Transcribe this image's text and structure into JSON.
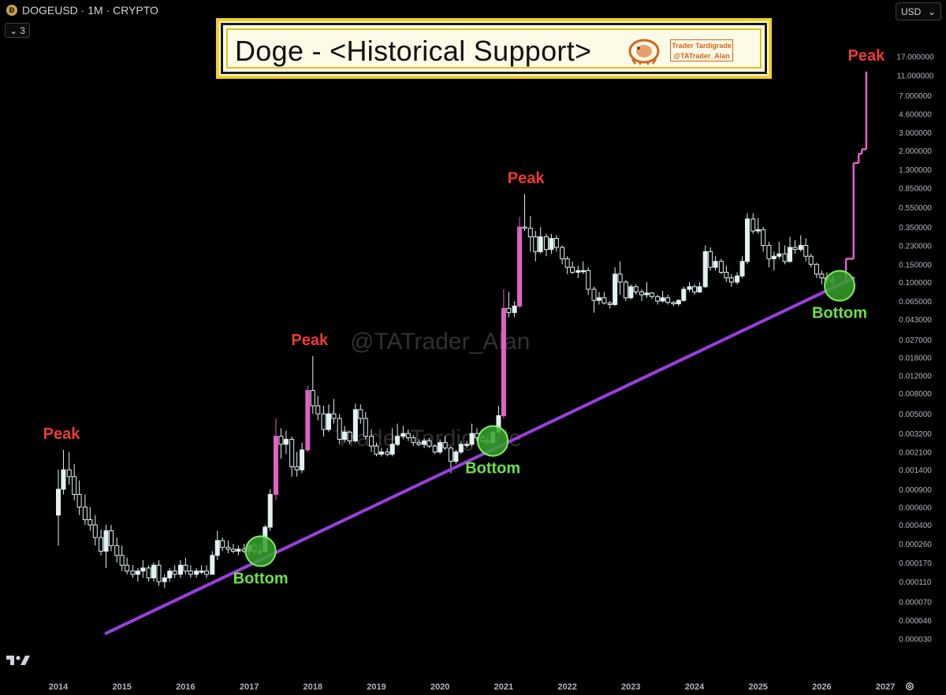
{
  "header": {
    "symbol_line": "DOGEUSD · 1M · CRYPTO",
    "coin_glyph": "Ð"
  },
  "indicator_pill": {
    "chevron": "⌄",
    "count": "3"
  },
  "currency_selector": {
    "value": "USD",
    "chevron": "⌄"
  },
  "title_box": {
    "title": "Doge - <Historical Support>",
    "badge_line1": "Trader Tardigrade",
    "badge_line2": "@TATrader_Alan"
  },
  "watermarks": {
    "handle": "@TATrader_Alan",
    "name": "Trader Tardigrade"
  },
  "colors": {
    "up_candle": "#e3f1f3",
    "peak_candle": "#e062c6",
    "support_line": "#9b3ee0",
    "peak_text": "#ee3b36",
    "bottom_text": "#6de04a",
    "bottom_circle": "#37a12e"
  },
  "chart_data": {
    "type": "candlestick",
    "symbol": "DOGEUSD",
    "interval": "1M",
    "y_scale": "log",
    "x_ticks": [
      "2014",
      "2015",
      "2016",
      "2017",
      "2018",
      "2019",
      "2020",
      "2021",
      "2022",
      "2023",
      "2024",
      "2025",
      "2026",
      "2027"
    ],
    "y_ticks": [
      "17.000000",
      "11.000000",
      "7.000000",
      "4.600000",
      "3.000000",
      "2.000000",
      "1.300000",
      "0.850000",
      "0.550000",
      "0.350000",
      "0.230000",
      "0.150000",
      "0.100000",
      "0.065000",
      "0.043000",
      "0.027000",
      "0.018000",
      "0.012000",
      "0.008000",
      "0.005000",
      "0.003200",
      "0.002100",
      "0.001400",
      "0.000900",
      "0.000600",
      "0.000400",
      "0.000260",
      "0.000170",
      "0.000110",
      "0.000070",
      "0.000046",
      "0.000030"
    ],
    "peaks": [
      {
        "label": "Peak",
        "year": 2014.05,
        "price": 0.0022
      },
      {
        "label": "Peak",
        "year": 2017.95,
        "price": 0.0186
      },
      {
        "label": "Peak",
        "year": 2021.35,
        "price": 0.74
      },
      {
        "label": "Peak",
        "year": 2026.7,
        "price": 12.0
      }
    ],
    "bottoms": [
      {
        "label": "Bottom",
        "year": 2017.18,
        "price": 0.00022
      },
      {
        "label": "Bottom",
        "year": 2020.83,
        "price": 0.0027
      },
      {
        "label": "Bottom",
        "year": 2026.28,
        "price": 0.092
      }
    ],
    "support_line": {
      "start": {
        "year": 2014.75,
        "price": 3.4e-05
      },
      "end": {
        "year": 2026.5,
        "price": 0.11
      }
    },
    "projection": [
      {
        "year": 2026.38,
        "price": 0.17
      },
      {
        "year": 2026.5,
        "price": 1.5
      },
      {
        "year": 2026.58,
        "price": 1.85
      },
      {
        "year": 2026.63,
        "price": 2.05
      },
      {
        "year": 2026.7,
        "price": 12.0
      }
    ],
    "candles": [
      [
        2014.0,
        0.0005,
        0.0014,
        0.00025,
        0.0009
      ],
      [
        2014.08,
        0.0009,
        0.0022,
        0.0008,
        0.0014
      ],
      [
        2014.17,
        0.0014,
        0.0021,
        0.001,
        0.0012
      ],
      [
        2014.25,
        0.0012,
        0.0016,
        0.0007,
        0.0008
      ],
      [
        2014.33,
        0.0008,
        0.0011,
        0.0005,
        0.0006
      ],
      [
        2014.42,
        0.0006,
        0.0008,
        0.0004,
        0.00045
      ],
      [
        2014.5,
        0.00045,
        0.0006,
        0.00035,
        0.0004
      ],
      [
        2014.58,
        0.0004,
        0.0005,
        0.00025,
        0.0003
      ],
      [
        2014.67,
        0.0003,
        0.00036,
        0.0002,
        0.00022
      ],
      [
        2014.75,
        0.00022,
        0.0004,
        0.00015,
        0.00035
      ],
      [
        2014.83,
        0.00035,
        0.0004,
        0.00022,
        0.00025
      ],
      [
        2014.92,
        0.00025,
        0.0003,
        0.00017,
        0.0002
      ],
      [
        2015.0,
        0.0002,
        0.00025,
        0.00014,
        0.00016
      ],
      [
        2015.08,
        0.00016,
        0.00019,
        0.00013,
        0.00014
      ],
      [
        2015.17,
        0.00014,
        0.00016,
        0.00012,
        0.00013
      ],
      [
        2015.25,
        0.00013,
        0.00015,
        0.00011,
        0.00014
      ],
      [
        2015.33,
        0.00014,
        0.00018,
        0.00012,
        0.00015
      ],
      [
        2015.42,
        0.00015,
        0.00016,
        0.00011,
        0.00012
      ],
      [
        2015.5,
        0.00012,
        0.00017,
        0.00011,
        0.00016
      ],
      [
        2015.58,
        0.00016,
        0.00018,
        0.0001,
        0.00011
      ],
      [
        2015.67,
        0.00011,
        0.00013,
        9.5e-05,
        0.00012
      ],
      [
        2015.75,
        0.00012,
        0.00015,
        0.00011,
        0.00014
      ],
      [
        2015.83,
        0.00014,
        0.00016,
        0.00012,
        0.00013
      ],
      [
        2015.92,
        0.00013,
        0.00018,
        0.00012,
        0.00016
      ],
      [
        2016.0,
        0.00016,
        0.00019,
        0.00013,
        0.00014
      ],
      [
        2016.08,
        0.00014,
        0.00016,
        0.00012,
        0.00013
      ],
      [
        2016.17,
        0.00013,
        0.00015,
        0.00012,
        0.00014
      ],
      [
        2016.25,
        0.00014,
        0.00016,
        0.00013,
        0.00014
      ],
      [
        2016.33,
        0.00014,
        0.00016,
        0.00012,
        0.00013
      ],
      [
        2016.42,
        0.00013,
        0.00022,
        0.00013,
        0.0002
      ],
      [
        2016.5,
        0.0002,
        0.00035,
        0.00018,
        0.00028
      ],
      [
        2016.58,
        0.00028,
        0.0003,
        0.00022,
        0.00024
      ],
      [
        2016.67,
        0.00024,
        0.00028,
        0.00021,
        0.00023
      ],
      [
        2016.75,
        0.00023,
        0.00026,
        0.00021,
        0.00022
      ],
      [
        2016.83,
        0.00022,
        0.00025,
        0.0002,
        0.00023
      ],
      [
        2016.92,
        0.00023,
        0.00026,
        0.00021,
        0.00022
      ],
      [
        2017.0,
        0.00022,
        0.00028,
        0.0002,
        0.00025
      ],
      [
        2017.08,
        0.00025,
        0.00027,
        0.0002,
        0.00022
      ],
      [
        2017.17,
        0.00022,
        0.00026,
        0.0002,
        0.00022
      ],
      [
        2017.25,
        0.00022,
        0.0004,
        0.00021,
        0.00038
      ],
      [
        2017.33,
        0.00038,
        0.0009,
        0.00035,
        0.0008
      ],
      [
        2017.42,
        0.0008,
        0.0045,
        0.0007,
        0.003
      ],
      [
        2017.5,
        0.003,
        0.0036,
        0.0018,
        0.0025
      ],
      [
        2017.58,
        0.0025,
        0.0034,
        0.002,
        0.0028
      ],
      [
        2017.67,
        0.0028,
        0.003,
        0.0012,
        0.0015
      ],
      [
        2017.75,
        0.0015,
        0.0021,
        0.0012,
        0.0014
      ],
      [
        2017.83,
        0.0014,
        0.0026,
        0.0013,
        0.0022
      ],
      [
        2017.92,
        0.0022,
        0.0095,
        0.0021,
        0.0085
      ],
      [
        2018.0,
        0.0085,
        0.0186,
        0.005,
        0.006
      ],
      [
        2018.08,
        0.006,
        0.0075,
        0.0043,
        0.005
      ],
      [
        2018.17,
        0.005,
        0.006,
        0.003,
        0.0035
      ],
      [
        2018.25,
        0.0035,
        0.0062,
        0.0033,
        0.005
      ],
      [
        2018.33,
        0.005,
        0.007,
        0.004,
        0.0045
      ],
      [
        2018.42,
        0.0045,
        0.005,
        0.0025,
        0.0028
      ],
      [
        2018.5,
        0.0028,
        0.0038,
        0.0026,
        0.0033
      ],
      [
        2018.58,
        0.0033,
        0.0034,
        0.0025,
        0.0027
      ],
      [
        2018.67,
        0.0027,
        0.0063,
        0.0026,
        0.0055
      ],
      [
        2018.75,
        0.0055,
        0.0062,
        0.004,
        0.0045
      ],
      [
        2018.83,
        0.0045,
        0.0052,
        0.0028,
        0.003
      ],
      [
        2018.92,
        0.003,
        0.0035,
        0.0021,
        0.0024
      ],
      [
        2019.0,
        0.0024,
        0.0026,
        0.0019,
        0.002
      ],
      [
        2019.08,
        0.002,
        0.0023,
        0.0019,
        0.0021
      ],
      [
        2019.17,
        0.0021,
        0.0023,
        0.0019,
        0.002
      ],
      [
        2019.25,
        0.002,
        0.0036,
        0.0019,
        0.0025
      ],
      [
        2019.33,
        0.0025,
        0.004,
        0.0024,
        0.003
      ],
      [
        2019.42,
        0.003,
        0.0038,
        0.0028,
        0.0032
      ],
      [
        2019.5,
        0.0032,
        0.0035,
        0.0027,
        0.0029
      ],
      [
        2019.58,
        0.0029,
        0.0031,
        0.0024,
        0.0026
      ],
      [
        2019.67,
        0.0026,
        0.0028,
        0.0024,
        0.0025
      ],
      [
        2019.75,
        0.0025,
        0.0029,
        0.0023,
        0.0027
      ],
      [
        2019.83,
        0.0027,
        0.0029,
        0.0023,
        0.0024
      ],
      [
        2019.92,
        0.0024,
        0.0025,
        0.002,
        0.0021
      ],
      [
        2020.0,
        0.0021,
        0.0028,
        0.002,
        0.0026
      ],
      [
        2020.08,
        0.0026,
        0.003,
        0.0022,
        0.0023
      ],
      [
        2020.17,
        0.0023,
        0.0024,
        0.0013,
        0.0017
      ],
      [
        2020.25,
        0.0017,
        0.0022,
        0.0016,
        0.0021
      ],
      [
        2020.33,
        0.0021,
        0.0027,
        0.002,
        0.0025
      ],
      [
        2020.42,
        0.0025,
        0.0027,
        0.0023,
        0.0025
      ],
      [
        2020.5,
        0.0025,
        0.004,
        0.0024,
        0.0032
      ],
      [
        2020.58,
        0.0032,
        0.0036,
        0.0027,
        0.0029
      ],
      [
        2020.67,
        0.0029,
        0.0031,
        0.0026,
        0.0027
      ],
      [
        2020.75,
        0.0027,
        0.003,
        0.0025,
        0.0026
      ],
      [
        2020.83,
        0.0026,
        0.0034,
        0.0025,
        0.0033
      ],
      [
        2020.92,
        0.0033,
        0.006,
        0.0032,
        0.0048
      ],
      [
        2021.0,
        0.0048,
        0.085,
        0.0045,
        0.055
      ],
      [
        2021.08,
        0.055,
        0.08,
        0.045,
        0.05
      ],
      [
        2021.17,
        0.05,
        0.065,
        0.045,
        0.058
      ],
      [
        2021.25,
        0.058,
        0.44,
        0.055,
        0.35
      ],
      [
        2021.33,
        0.35,
        0.74,
        0.32,
        0.34
      ],
      [
        2021.42,
        0.34,
        0.45,
        0.2,
        0.28
      ],
      [
        2021.5,
        0.28,
        0.32,
        0.16,
        0.2
      ],
      [
        2021.58,
        0.2,
        0.35,
        0.19,
        0.28
      ],
      [
        2021.67,
        0.28,
        0.3,
        0.18,
        0.21
      ],
      [
        2021.75,
        0.21,
        0.3,
        0.19,
        0.27
      ],
      [
        2021.83,
        0.27,
        0.29,
        0.2,
        0.22
      ],
      [
        2021.92,
        0.22,
        0.23,
        0.15,
        0.17
      ],
      [
        2022.0,
        0.17,
        0.18,
        0.12,
        0.14
      ],
      [
        2022.08,
        0.14,
        0.16,
        0.12,
        0.125
      ],
      [
        2022.17,
        0.125,
        0.145,
        0.11,
        0.13
      ],
      [
        2022.25,
        0.13,
        0.16,
        0.12,
        0.13
      ],
      [
        2022.33,
        0.13,
        0.14,
        0.075,
        0.085
      ],
      [
        2022.42,
        0.085,
        0.09,
        0.05,
        0.066
      ],
      [
        2022.5,
        0.066,
        0.08,
        0.06,
        0.07
      ],
      [
        2022.58,
        0.07,
        0.08,
        0.06,
        0.062
      ],
      [
        2022.67,
        0.062,
        0.065,
        0.055,
        0.06
      ],
      [
        2022.75,
        0.06,
        0.14,
        0.058,
        0.12
      ],
      [
        2022.83,
        0.12,
        0.16,
        0.075,
        0.1
      ],
      [
        2022.92,
        0.1,
        0.105,
        0.065,
        0.07
      ],
      [
        2023.0,
        0.07,
        0.095,
        0.068,
        0.09
      ],
      [
        2023.08,
        0.09,
        0.095,
        0.075,
        0.08
      ],
      [
        2023.17,
        0.08,
        0.085,
        0.065,
        0.075
      ],
      [
        2023.25,
        0.075,
        0.1,
        0.07,
        0.078
      ],
      [
        2023.33,
        0.078,
        0.08,
        0.068,
        0.072
      ],
      [
        2023.42,
        0.072,
        0.075,
        0.06,
        0.065
      ],
      [
        2023.5,
        0.065,
        0.082,
        0.063,
        0.07
      ],
      [
        2023.58,
        0.07,
        0.075,
        0.06,
        0.063
      ],
      [
        2023.67,
        0.063,
        0.065,
        0.058,
        0.061
      ],
      [
        2023.75,
        0.061,
        0.068,
        0.058,
        0.066
      ],
      [
        2023.83,
        0.066,
        0.09,
        0.064,
        0.085
      ],
      [
        2023.92,
        0.085,
        0.1,
        0.08,
        0.09
      ],
      [
        2024.0,
        0.09,
        0.095,
        0.075,
        0.08
      ],
      [
        2024.08,
        0.08,
        0.1,
        0.078,
        0.09
      ],
      [
        2024.17,
        0.09,
        0.23,
        0.088,
        0.2
      ],
      [
        2024.25,
        0.2,
        0.22,
        0.13,
        0.14
      ],
      [
        2024.33,
        0.14,
        0.18,
        0.13,
        0.16
      ],
      [
        2024.42,
        0.16,
        0.17,
        0.12,
        0.125
      ],
      [
        2024.5,
        0.125,
        0.145,
        0.1,
        0.11
      ],
      [
        2024.58,
        0.11,
        0.12,
        0.09,
        0.1
      ],
      [
        2024.67,
        0.1,
        0.125,
        0.095,
        0.115
      ],
      [
        2024.75,
        0.115,
        0.18,
        0.11,
        0.16
      ],
      [
        2024.83,
        0.16,
        0.48,
        0.15,
        0.42
      ],
      [
        2024.92,
        0.42,
        0.48,
        0.3,
        0.32
      ],
      [
        2025.0,
        0.32,
        0.43,
        0.3,
        0.33
      ],
      [
        2025.08,
        0.33,
        0.35,
        0.2,
        0.23
      ],
      [
        2025.17,
        0.23,
        0.25,
        0.14,
        0.17
      ],
      [
        2025.25,
        0.17,
        0.2,
        0.13,
        0.18
      ],
      [
        2025.33,
        0.18,
        0.25,
        0.17,
        0.19
      ],
      [
        2025.42,
        0.19,
        0.23,
        0.15,
        0.16
      ],
      [
        2025.5,
        0.16,
        0.28,
        0.155,
        0.22
      ],
      [
        2025.58,
        0.22,
        0.26,
        0.19,
        0.21
      ],
      [
        2025.67,
        0.21,
        0.29,
        0.2,
        0.23
      ],
      [
        2025.75,
        0.23,
        0.27,
        0.16,
        0.18
      ],
      [
        2025.83,
        0.18,
        0.19,
        0.14,
        0.15
      ],
      [
        2025.92,
        0.15,
        0.155,
        0.11,
        0.12
      ],
      [
        2026.0,
        0.12,
        0.13,
        0.095,
        0.11
      ],
      [
        2026.08,
        0.11,
        0.125,
        0.095,
        0.105
      ],
      [
        2026.17,
        0.105,
        0.115,
        0.092,
        0.1
      ]
    ]
  }
}
